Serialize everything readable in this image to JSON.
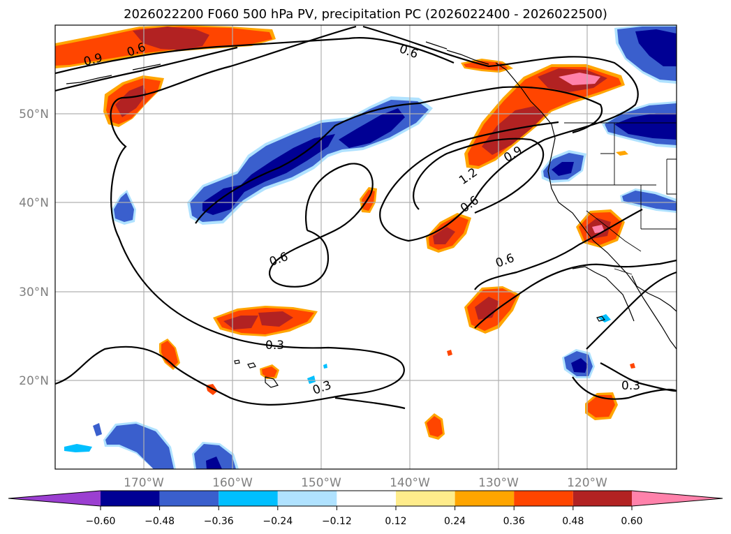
{
  "title": "2026022200 F060 500 hPa PV, precipitation PC (2026022400 - 2026022500)",
  "lat_labels": [
    "50°N",
    "40°N",
    "30°N",
    "20°N"
  ],
  "lon_labels": [
    "170°W",
    "160°W",
    "150°W",
    "140°W",
    "130°W",
    "120°W"
  ],
  "colorbar": {
    "ticks": [
      "−0.60",
      "−0.48",
      "−0.36",
      "−0.24",
      "−0.12",
      "0.12",
      "0.24",
      "0.36",
      "0.48",
      "0.60"
    ],
    "colors": [
      "#9b3fd1",
      "#000094",
      "#3a5fcd",
      "#00bfff",
      "#b0e2ff",
      "#ffffff",
      "#ffec8b",
      "#ffa500",
      "#ff4500",
      "#b22222",
      "#ff82ab"
    ]
  },
  "contour_labels": [
    "0.9",
    "0.6",
    "0.6",
    "1.2",
    "0.9",
    "0.6",
    "0.6",
    "0.6",
    "0.3",
    "0.3",
    "0.3"
  ]
}
